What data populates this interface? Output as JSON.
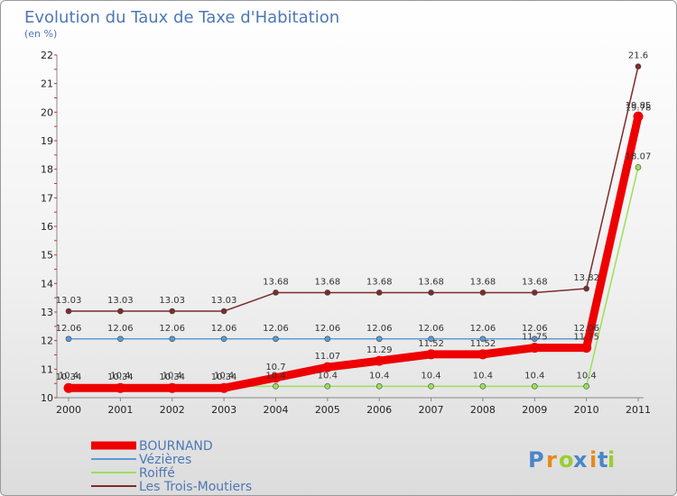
{
  "chart_data": {
    "type": "line",
    "title": "Evolution du Taux de Taxe d'Habitation",
    "ylabel": "(en %)",
    "xlabel": "",
    "ylim": [
      10,
      22
    ],
    "yticks": [
      10,
      11,
      12,
      13,
      14,
      15,
      16,
      17,
      18,
      19,
      20,
      21,
      22
    ],
    "grid": false,
    "x": [
      "2000",
      "2001",
      "2002",
      "2003",
      "2004",
      "2005",
      "2006",
      "2007",
      "2008",
      "2009",
      "2010",
      "2011"
    ],
    "series": [
      {
        "name": "BOURNAND",
        "color": "#ee0000",
        "values": [
          10.34,
          10.34,
          10.34,
          10.34,
          10.7,
          11.07,
          11.29,
          11.52,
          11.52,
          11.75,
          11.75,
          19.85
        ],
        "labels": [
          "10.34",
          "10.34",
          "10.34",
          "10.34",
          "10.7",
          "11.07",
          "11.29",
          "11.52",
          "11.52",
          "11.75",
          "11.75",
          "19.85"
        ]
      },
      {
        "name": "Vézières",
        "color": "#5b9bd5",
        "values": [
          12.06,
          12.06,
          12.06,
          12.06,
          12.06,
          12.06,
          12.06,
          12.06,
          12.06,
          12.06,
          12.06,
          19.78
        ],
        "labels": [
          "12.06",
          "12.06",
          "12.06",
          "12.06",
          "12.06",
          "12.06",
          "12.06",
          "12.06",
          "12.06",
          "12.06",
          "12.06",
          "19.78"
        ]
      },
      {
        "name": "Roiffé",
        "color": "#99e05a",
        "values": [
          10.4,
          10.4,
          10.4,
          10.4,
          10.4,
          10.4,
          10.4,
          10.4,
          10.4,
          10.4,
          10.4,
          18.07
        ],
        "labels": [
          "10.4",
          "10.4",
          "10.4",
          "10.4",
          "10.4",
          "10.4",
          "10.4",
          "10.4",
          "10.4",
          "10.4",
          "10.4",
          "18.07"
        ]
      },
      {
        "name": "Les Trois-Moutiers",
        "color": "#7b2c2c",
        "values": [
          13.03,
          13.03,
          13.03,
          13.03,
          13.68,
          13.68,
          13.68,
          13.68,
          13.68,
          13.68,
          13.82,
          21.6
        ],
        "labels": [
          "13.03",
          "13.03",
          "13.03",
          "13.03",
          "13.68",
          "13.68",
          "13.68",
          "13.68",
          "13.68",
          "13.68",
          "13.82",
          "21.6"
        ]
      }
    ],
    "legend": "bottom-left"
  },
  "brand": {
    "letters": [
      "P",
      "r",
      "o",
      "x",
      "i",
      "t",
      "i"
    ],
    "colors": [
      "#4a86c8",
      "#e8891a",
      "#9acd32",
      "#4a86c8",
      "#e8891a",
      "#4a86c8",
      "#9acd32"
    ]
  }
}
